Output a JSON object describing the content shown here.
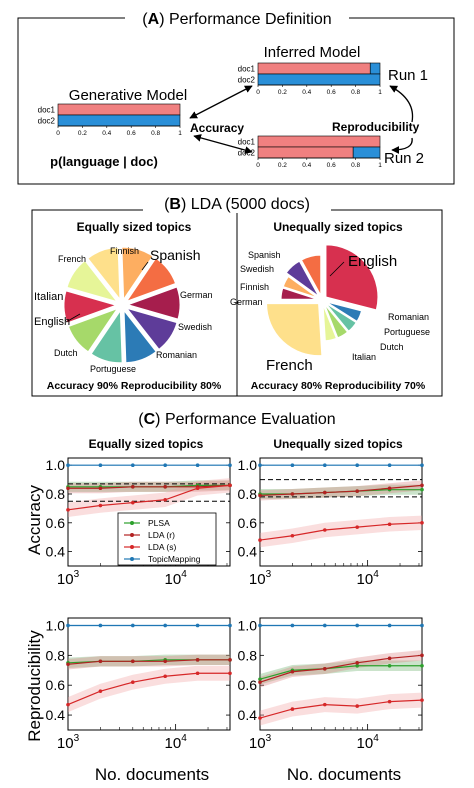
{
  "panel_a": {
    "title_prefix": "(",
    "title_letter": "A",
    "title_suffix": ") Performance Definition",
    "generative_model": "Generative Model",
    "inferred_model": "Inferred Model",
    "run1": "Run 1",
    "run2": "Run 2",
    "accuracy": "Accuracy",
    "reproducibility": "Reproducibility",
    "plang": "p(language | doc)",
    "doc1": "doc1",
    "doc2": "doc2",
    "ticks": [
      "0",
      "0.2",
      "0.4",
      "0.6",
      "0.8",
      "1"
    ],
    "generative": {
      "doc1": 1.0,
      "doc2": 0.0
    },
    "run1_vals": {
      "doc1": 0.92,
      "doc2": 0.0
    },
    "run2_vals": {
      "doc1": 1.0,
      "doc2": 0.78
    },
    "colors": {
      "red": "#f08080",
      "blue": "#2a8fd8"
    }
  },
  "panel_b": {
    "title_prefix": "(",
    "title_letter": "B",
    "title_suffix": ") LDA (5000 docs)",
    "left": {
      "title": "Equally sized topics",
      "footer": "Accuracy 90% Reproducibility 80%",
      "labels": {
        "spanish": "Spanish",
        "finnish": "Finnish",
        "french": "French",
        "german": "German",
        "italian": "Italian",
        "english": "English",
        "swedish": "Swedish",
        "dutch": "Dutch",
        "romanian": "Romanian",
        "portuguese": "Portuguese"
      }
    },
    "right": {
      "title": "Unequally sized topics",
      "footer": "Accuracy 80% Reproducibility 70%",
      "labels": {
        "english": "English",
        "spanish": "Spanish",
        "swedish": "Swedish",
        "finnish": "Finnish",
        "german": "German",
        "french": "French",
        "italian": "Italian",
        "dutch": "Dutch",
        "portuguese": "Portuguese",
        "romanian": "Romanian"
      }
    }
  },
  "panel_c": {
    "title_prefix": "(",
    "title_letter": "C",
    "title_suffix": ")  Performance Evaluation",
    "col_left": "Equally sized topics",
    "col_right": "Unequally sized topics",
    "ylabel_top": "Accuracy",
    "ylabel_bottom": "Reproducibility",
    "xlabel": "No. documents",
    "yticks": [
      "0.4",
      "0.6",
      "0.8",
      "1.0"
    ],
    "xtick_base": "10",
    "xtick_exps": [
      "3",
      "4"
    ],
    "legend": [
      "PLSA",
      "LDA (r)",
      "LDA (s)",
      "TopicMapping"
    ]
  },
  "chart_data": [
    {
      "type": "line",
      "panel": "accuracy-equal",
      "x": [
        1000,
        2000,
        4000,
        8000,
        16000,
        32000
      ],
      "xscale": "log",
      "xlim": [
        1000,
        32000
      ],
      "ylim": [
        0.3,
        1.05
      ],
      "dashed_lines": [
        0.75,
        0.87
      ],
      "series": [
        {
          "name": "PLSA",
          "color": "#2ca02c",
          "values": [
            0.85,
            0.85,
            0.85,
            0.85,
            0.86,
            0.86
          ]
        },
        {
          "name": "LDA (r)",
          "color": "#b22222",
          "values": [
            0.84,
            0.84,
            0.85,
            0.85,
            0.85,
            0.86
          ]
        },
        {
          "name": "LDA (s)",
          "color": "#d62728",
          "values": [
            0.69,
            0.72,
            0.74,
            0.76,
            0.84,
            0.86
          ]
        },
        {
          "name": "TopicMapping",
          "color": "#1f77b4",
          "values": [
            1.0,
            1.0,
            1.0,
            1.0,
            1.0,
            1.0
          ]
        }
      ]
    },
    {
      "type": "line",
      "panel": "accuracy-unequal",
      "x": [
        1000,
        2000,
        4000,
        8000,
        16000,
        32000
      ],
      "xscale": "log",
      "xlim": [
        1000,
        32000
      ],
      "ylim": [
        0.3,
        1.05
      ],
      "dashed_lines": [
        0.78,
        0.9
      ],
      "series": [
        {
          "name": "PLSA",
          "color": "#2ca02c",
          "values": [
            0.8,
            0.8,
            0.81,
            0.82,
            0.83,
            0.83
          ]
        },
        {
          "name": "LDA (r)",
          "color": "#b22222",
          "values": [
            0.79,
            0.8,
            0.81,
            0.82,
            0.84,
            0.86
          ]
        },
        {
          "name": "LDA (s)",
          "color": "#d62728",
          "values": [
            0.48,
            0.51,
            0.55,
            0.57,
            0.59,
            0.6
          ]
        },
        {
          "name": "TopicMapping",
          "color": "#1f77b4",
          "values": [
            1.0,
            1.0,
            1.0,
            1.0,
            1.0,
            1.0
          ]
        }
      ]
    },
    {
      "type": "line",
      "panel": "reproducibility-equal",
      "x": [
        1000,
        2000,
        4000,
        8000,
        16000,
        32000
      ],
      "xscale": "log",
      "xlim": [
        1000,
        32000
      ],
      "ylim": [
        0.3,
        1.05
      ],
      "series": [
        {
          "name": "PLSA",
          "color": "#2ca02c",
          "values": [
            0.75,
            0.76,
            0.76,
            0.77,
            0.77,
            0.77
          ]
        },
        {
          "name": "LDA (r)",
          "color": "#b22222",
          "values": [
            0.74,
            0.76,
            0.76,
            0.76,
            0.77,
            0.77
          ]
        },
        {
          "name": "LDA (s)",
          "color": "#d62728",
          "values": [
            0.47,
            0.56,
            0.62,
            0.66,
            0.68,
            0.68
          ]
        },
        {
          "name": "TopicMapping",
          "color": "#1f77b4",
          "values": [
            1.0,
            1.0,
            1.0,
            1.0,
            1.0,
            1.0
          ]
        }
      ]
    },
    {
      "type": "line",
      "panel": "reproducibility-unequal",
      "x": [
        1000,
        2000,
        4000,
        8000,
        16000,
        32000
      ],
      "xscale": "log",
      "xlim": [
        1000,
        32000
      ],
      "ylim": [
        0.3,
        1.05
      ],
      "series": [
        {
          "name": "PLSA",
          "color": "#2ca02c",
          "values": [
            0.64,
            0.7,
            0.71,
            0.73,
            0.73,
            0.73
          ]
        },
        {
          "name": "LDA (r)",
          "color": "#b22222",
          "values": [
            0.62,
            0.69,
            0.71,
            0.75,
            0.78,
            0.8
          ]
        },
        {
          "name": "LDA (s)",
          "color": "#d62728",
          "values": [
            0.38,
            0.44,
            0.47,
            0.46,
            0.49,
            0.5
          ]
        },
        {
          "name": "TopicMapping",
          "color": "#1f77b4",
          "values": [
            1.0,
            1.0,
            1.0,
            1.0,
            1.0,
            1.0
          ]
        }
      ]
    },
    {
      "type": "pie",
      "panel": "lda-equal",
      "slices": [
        {
          "label": "German",
          "value": 10,
          "color": "#a61e4d"
        },
        {
          "label": "Swedish",
          "value": 10,
          "color": "#5e3c99"
        },
        {
          "label": "Romanian",
          "value": 10,
          "color": "#2c7bb6"
        },
        {
          "label": "Portuguese",
          "value": 10,
          "color": "#66c2a4"
        },
        {
          "label": "Dutch",
          "value": 10,
          "color": "#a6d96a"
        },
        {
          "label": "English",
          "value": 10,
          "color": "#d7304f"
        },
        {
          "label": "Italian",
          "value": 10,
          "color": "#e6f598"
        },
        {
          "label": "French",
          "value": 10,
          "color": "#fee08b"
        },
        {
          "label": "Finnish",
          "value": 10,
          "color": "#fdae61"
        },
        {
          "label": "Spanish",
          "value": 10,
          "color": "#f46d43"
        }
      ]
    },
    {
      "type": "pie",
      "panel": "lda-unequal",
      "slices": [
        {
          "label": "English",
          "value": 29,
          "color": "#d7304f"
        },
        {
          "label": "Romanian",
          "value": 5,
          "color": "#2c7bb6"
        },
        {
          "label": "Portuguese",
          "value": 5,
          "color": "#66c2a4"
        },
        {
          "label": "Dutch",
          "value": 5,
          "color": "#a6d96a"
        },
        {
          "label": "Italian",
          "value": 5,
          "color": "#e6f598"
        },
        {
          "label": "French",
          "value": 26,
          "color": "#fee08b"
        },
        {
          "label": "German",
          "value": 5,
          "color": "#a61e4d"
        },
        {
          "label": "Finnish",
          "value": 5,
          "color": "#fdae61"
        },
        {
          "label": "Swedish",
          "value": 7,
          "color": "#5e3c99"
        },
        {
          "label": "Spanish",
          "value": 8,
          "color": "#f46d43"
        }
      ]
    }
  ]
}
